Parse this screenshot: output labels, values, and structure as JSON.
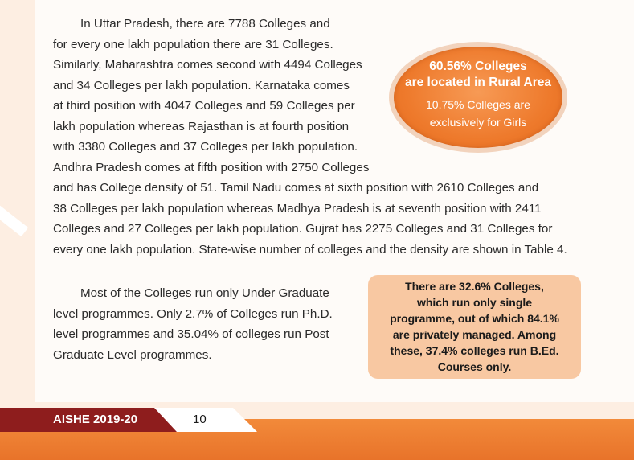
{
  "paragraph1": {
    "lines": [
      "In Uttar Pradesh, there are 7788 Colleges and",
      "for every one lakh population there are 31 Colleges.",
      "Similarly, Maharashtra comes second with 4494 Colleges",
      "and 34 Colleges per lakh population. Karnataka comes",
      "at third position with 4047 Colleges and 59 Colleges per",
      "lakh population whereas Rajasthan is at fourth position",
      "with 3380 Colleges and 37 Colleges per lakh population.",
      "Andhra Pradesh comes at fifth position with 2750 Colleges"
    ]
  },
  "paragraph1_cont": {
    "lines": [
      "and has College density of 51. Tamil Nadu comes at sixth position with 2610 Colleges and",
      "38 Colleges per lakh population whereas Madhya Pradesh is at seventh position with 2411",
      "Colleges and 27 Colleges per lakh population. Gujrat has 2275 Colleges and 31 Colleges for",
      "every one lakh population. State-wise number of colleges and the density are shown in Table 4."
    ]
  },
  "paragraph2": {
    "lines": [
      "Most of the Colleges run only Under Graduate",
      "level programmes. Only 2.7% of Colleges run Ph.D.",
      "level programmes and 35.04% of colleges run Post",
      "Graduate Level programmes."
    ]
  },
  "highlight_circle": {
    "line1": "60.56% Colleges",
    "line2": "are located in Rural Area",
    "line3": "10.75% Colleges are",
    "line4": "exclusively for Girls"
  },
  "highlight_box": {
    "lines": [
      "There are 32.6% Colleges,",
      "which run only single",
      "programme, out of which 84.1%",
      "are privately managed. Among",
      "these, 37.4% colleges run B.Ed.",
      "Courses only."
    ]
  },
  "footer": {
    "label": "AISHE 2019-20",
    "page_number": "10"
  },
  "colors": {
    "accent_orange": "#ee7a2c",
    "footer_red": "#8e1d1d",
    "box_peach": "#f8c8a2"
  }
}
